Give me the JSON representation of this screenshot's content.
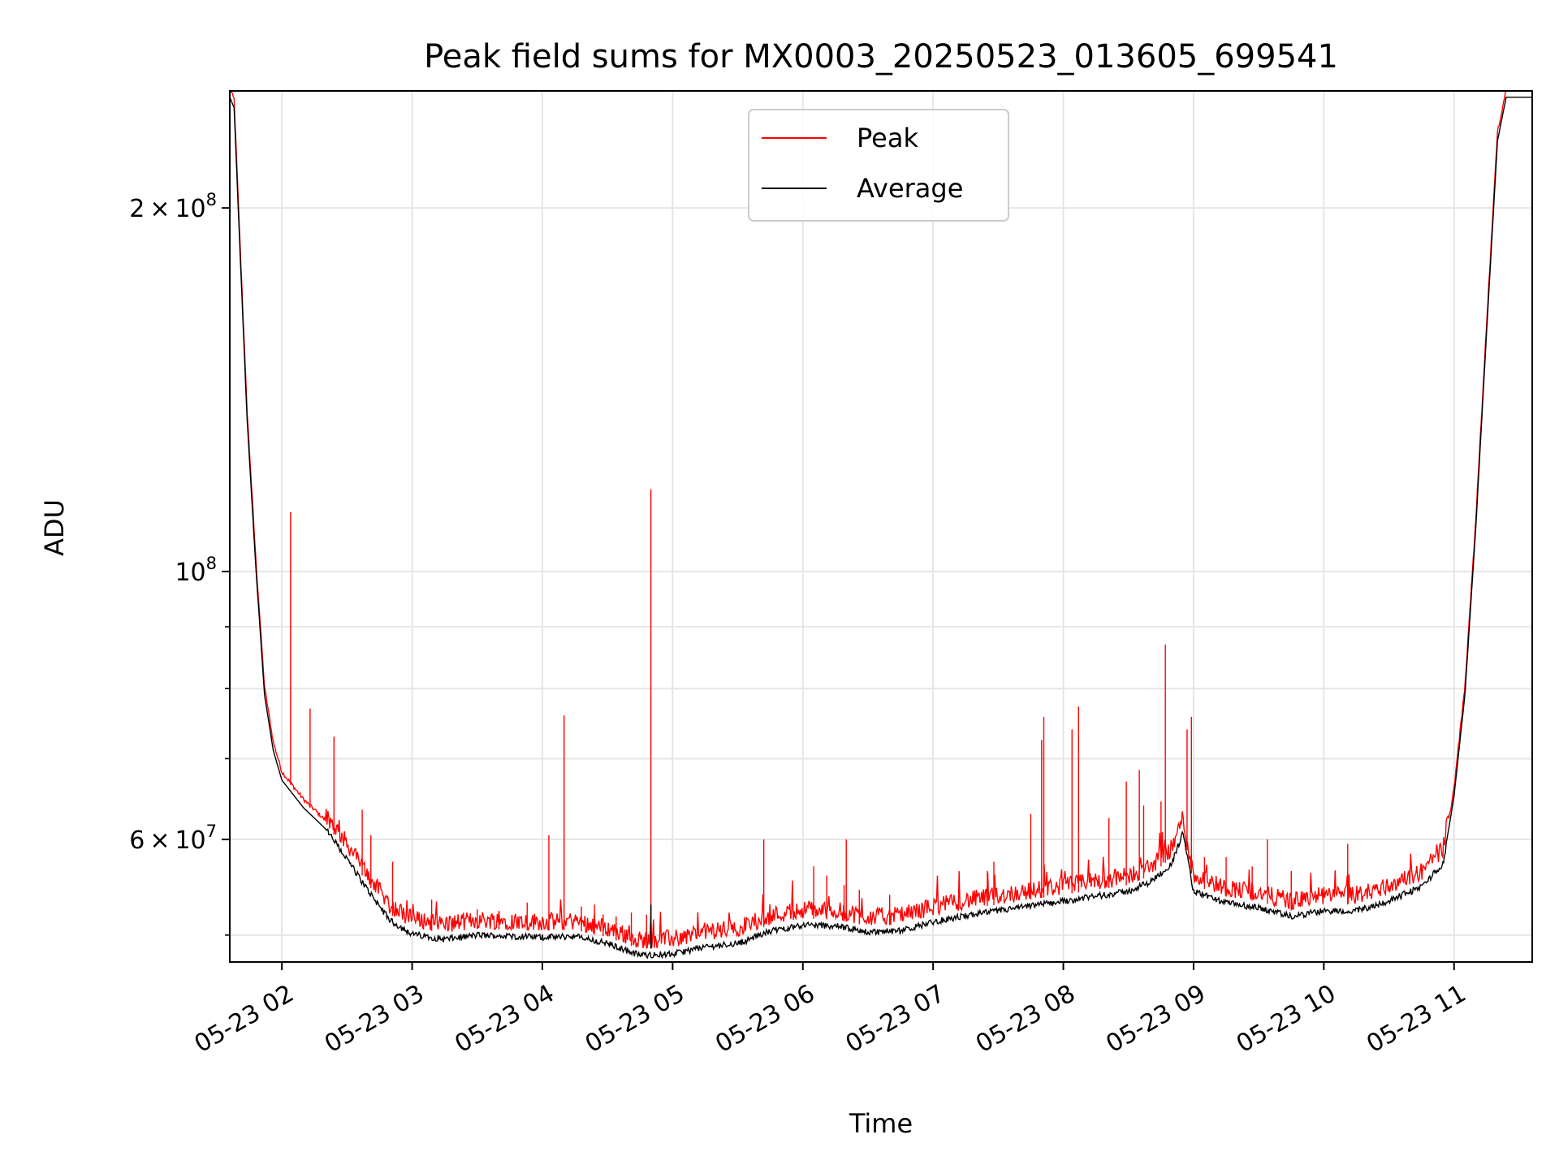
{
  "chart_data": {
    "type": "line",
    "title": "Peak field sums for MX0003_20250523_013605_699541",
    "xlabel": "Time",
    "ylabel": "ADU",
    "yscale": "log",
    "xlim": [
      "2025-05-23 01:36",
      "2025-05-23 11:36"
    ],
    "ylim": [
      47500000,
      250000000
    ],
    "x_ticks": [
      "05-23 02",
      "05-23 03",
      "05-23 04",
      "05-23 05",
      "05-23 06",
      "05-23 07",
      "05-23 08",
      "05-23 09",
      "05-23 10",
      "05-23 11"
    ],
    "y_major_ticks": [
      {
        "value": 60000000,
        "mant": "6",
        "exp": "7"
      },
      {
        "value": 100000000,
        "mant": "",
        "exp": "8"
      },
      {
        "value": 200000000,
        "mant": "2",
        "exp": "8"
      }
    ],
    "y_minor_ticks": [
      50000000,
      70000000,
      80000000,
      90000000
    ],
    "grid": true,
    "legend_position": "upper-center",
    "series": [
      {
        "name": "Peak",
        "color": "#ff0000",
        "baseline": [
          [
            "2025-05-23 01:36",
            250000000
          ],
          [
            "2025-05-23 01:38",
            245000000
          ],
          [
            "2025-05-23 01:40",
            200000000
          ],
          [
            "2025-05-23 01:44",
            135000000
          ],
          [
            "2025-05-23 01:48",
            102000000
          ],
          [
            "2025-05-23 01:52",
            80000000
          ],
          [
            "2025-05-23 01:56",
            72000000
          ],
          [
            "2025-05-23 02:00",
            68000000
          ],
          [
            "2025-05-23 02:10",
            64500000
          ],
          [
            "2025-05-23 02:20",
            62000000
          ],
          [
            "2025-05-23 02:30",
            58500000
          ],
          [
            "2025-05-23 02:40",
            55000000
          ],
          [
            "2025-05-23 02:50",
            52000000
          ],
          [
            "2025-05-23 03:00",
            50700000
          ],
          [
            "2025-05-23 03:15",
            50200000
          ],
          [
            "2025-05-23 03:30",
            50600000
          ],
          [
            "2025-05-23 03:45",
            50500000
          ],
          [
            "2025-05-23 04:00",
            50400000
          ],
          [
            "2025-05-23 04:15",
            50500000
          ],
          [
            "2025-05-23 04:30",
            49800000
          ],
          [
            "2025-05-23 04:45",
            48700000
          ],
          [
            "2025-05-23 05:00",
            48800000
          ],
          [
            "2025-05-23 05:15",
            49500000
          ],
          [
            "2025-05-23 05:30",
            49800000
          ],
          [
            "2025-05-23 05:45",
            51000000
          ],
          [
            "2025-05-23 06:00",
            51600000
          ],
          [
            "2025-05-23 06:15",
            51500000
          ],
          [
            "2025-05-23 06:30",
            50900000
          ],
          [
            "2025-05-23 06:45",
            51000000
          ],
          [
            "2025-05-23 07:00",
            51900000
          ],
          [
            "2025-05-23 07:15",
            52500000
          ],
          [
            "2025-05-23 07:30",
            53000000
          ],
          [
            "2025-05-23 07:45",
            53500000
          ],
          [
            "2025-05-23 08:00",
            54000000
          ],
          [
            "2025-05-23 08:15",
            54500000
          ],
          [
            "2025-05-23 08:30",
            55000000
          ],
          [
            "2025-05-23 08:40",
            56000000
          ],
          [
            "2025-05-23 08:50",
            58000000
          ],
          [
            "2025-05-23 08:55",
            61500000
          ],
          [
            "2025-05-23 09:00",
            55000000
          ],
          [
            "2025-05-23 09:15",
            53800000
          ],
          [
            "2025-05-23 09:30",
            53300000
          ],
          [
            "2025-05-23 09:45",
            52400000
          ],
          [
            "2025-05-23 10:00",
            53000000
          ],
          [
            "2025-05-23 10:15",
            53000000
          ],
          [
            "2025-05-23 10:30",
            54000000
          ],
          [
            "2025-05-23 10:45",
            55500000
          ],
          [
            "2025-05-23 10:55",
            58000000
          ],
          [
            "2025-05-23 11:00",
            66000000
          ],
          [
            "2025-05-23 11:05",
            80000000
          ],
          [
            "2025-05-23 11:10",
            110000000
          ],
          [
            "2025-05-23 11:15",
            160000000
          ],
          [
            "2025-05-23 11:20",
            230000000
          ],
          [
            "2025-05-23 11:24",
            250000000
          ],
          [
            "2025-05-23 11:36",
            250000000
          ]
        ],
        "spikes": [
          [
            "2025-05-23 02:04",
            112000000
          ],
          [
            "2025-05-23 02:13",
            77000000
          ],
          [
            "2025-05-23 02:24",
            73000000
          ],
          [
            "2025-05-23 02:37",
            63500000
          ],
          [
            "2025-05-23 02:41",
            60500000
          ],
          [
            "2025-05-23 02:51",
            57500000
          ],
          [
            "2025-05-23 03:09",
            53500000
          ],
          [
            "2025-05-23 03:30",
            52500000
          ],
          [
            "2025-05-23 03:40",
            51500000
          ],
          [
            "2025-05-23 03:53",
            53200000
          ],
          [
            "2025-05-23 04:03",
            60500000
          ],
          [
            "2025-05-23 04:10",
            76000000
          ],
          [
            "2025-05-23 04:18",
            52800000
          ],
          [
            "2025-05-23 04:24",
            53000000
          ],
          [
            "2025-05-23 04:28",
            52000000
          ],
          [
            "2025-05-23 04:34",
            51800000
          ],
          [
            "2025-05-23 04:41",
            52200000
          ],
          [
            "2025-05-23 04:48",
            52000000
          ],
          [
            "2025-05-23 04:50",
            117000000
          ],
          [
            "2025-05-23 05:42",
            60000000
          ],
          [
            "2025-05-23 06:05",
            57000000
          ],
          [
            "2025-05-23 06:11",
            56000000
          ],
          [
            "2025-05-23 06:19",
            55000000
          ],
          [
            "2025-05-23 06:20",
            60000000
          ],
          [
            "2025-05-23 06:26",
            54500000
          ],
          [
            "2025-05-23 06:40",
            54000000
          ],
          [
            "2025-05-23 07:25",
            56500000
          ],
          [
            "2025-05-23 07:28",
            57500000
          ],
          [
            "2025-05-23 07:45",
            63000000
          ],
          [
            "2025-05-23 07:50",
            72500000
          ],
          [
            "2025-05-23 07:51",
            75800000
          ],
          [
            "2025-05-23 08:04",
            74000000
          ],
          [
            "2025-05-23 08:07",
            77300000
          ],
          [
            "2025-05-23 08:21",
            62500000
          ],
          [
            "2025-05-23 08:29",
            67000000
          ],
          [
            "2025-05-23 08:35",
            68500000
          ],
          [
            "2025-05-23 08:37",
            64000000
          ],
          [
            "2025-05-23 08:45",
            64500000
          ],
          [
            "2025-05-23 08:47",
            87000000
          ],
          [
            "2025-05-23 08:57",
            74000000
          ],
          [
            "2025-05-23 08:59",
            75800000
          ],
          [
            "2025-05-23 09:05",
            58000000
          ],
          [
            "2025-05-23 09:15",
            58000000
          ],
          [
            "2025-05-23 09:27",
            57000000
          ],
          [
            "2025-05-23 09:34",
            60000000
          ],
          [
            "2025-05-23 09:45",
            56500000
          ],
          [
            "2025-05-23 10:11",
            59500000
          ]
        ]
      },
      {
        "name": "Average",
        "color": "#000000",
        "baseline_offset_fraction": -0.012,
        "spikes": [
          [
            "2025-05-23 04:50",
            53000000
          ]
        ]
      }
    ]
  }
}
